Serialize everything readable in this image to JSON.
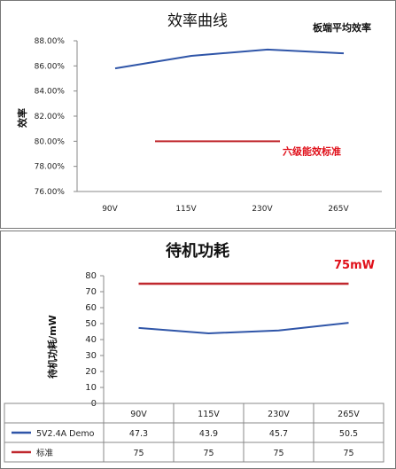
{
  "chart_data": [
    {
      "type": "line",
      "title": "效率曲线",
      "ylabel": "效率",
      "categories": [
        "90V",
        "115V",
        "230V",
        "265V"
      ],
      "ylim": [
        76,
        88
      ],
      "ytick_labels": [
        "88.00%",
        "86.00%",
        "84.00%",
        "82.00%",
        "80.00%",
        "78.00%",
        "76.00%"
      ],
      "series": [
        {
          "values": [
            85.8,
            86.8,
            87.3,
            87.0
          ],
          "color": "#2f55a8"
        }
      ],
      "standard": {
        "label": "六级能效标准",
        "value": 80,
        "from_category": 1,
        "to_category": 2,
        "color": "#c0282e"
      },
      "annotation": "板端平均效率",
      "grid": false
    },
    {
      "type": "line",
      "title": "待机功耗",
      "ylabel": "待机功耗/mW",
      "categories": [
        "90V",
        "115V",
        "230V",
        "265V"
      ],
      "ylim": [
        0,
        80
      ],
      "yticks": [
        0,
        10,
        20,
        30,
        40,
        50,
        60,
        70,
        80
      ],
      "series": [
        {
          "name": "5V2.4A Demo",
          "values": [
            47.3,
            43.9,
            45.7,
            50.5
          ],
          "labels": [
            "47.3",
            "43.9",
            "45.7",
            "50.5"
          ],
          "color": "#2f55a8"
        },
        {
          "name": "标准",
          "values": [
            75,
            75,
            75,
            75
          ],
          "labels": [
            "75",
            "75",
            "75",
            "75"
          ],
          "color": "#c0282e"
        }
      ],
      "annotation": "75mW",
      "grid": false,
      "data_table": true
    }
  ]
}
